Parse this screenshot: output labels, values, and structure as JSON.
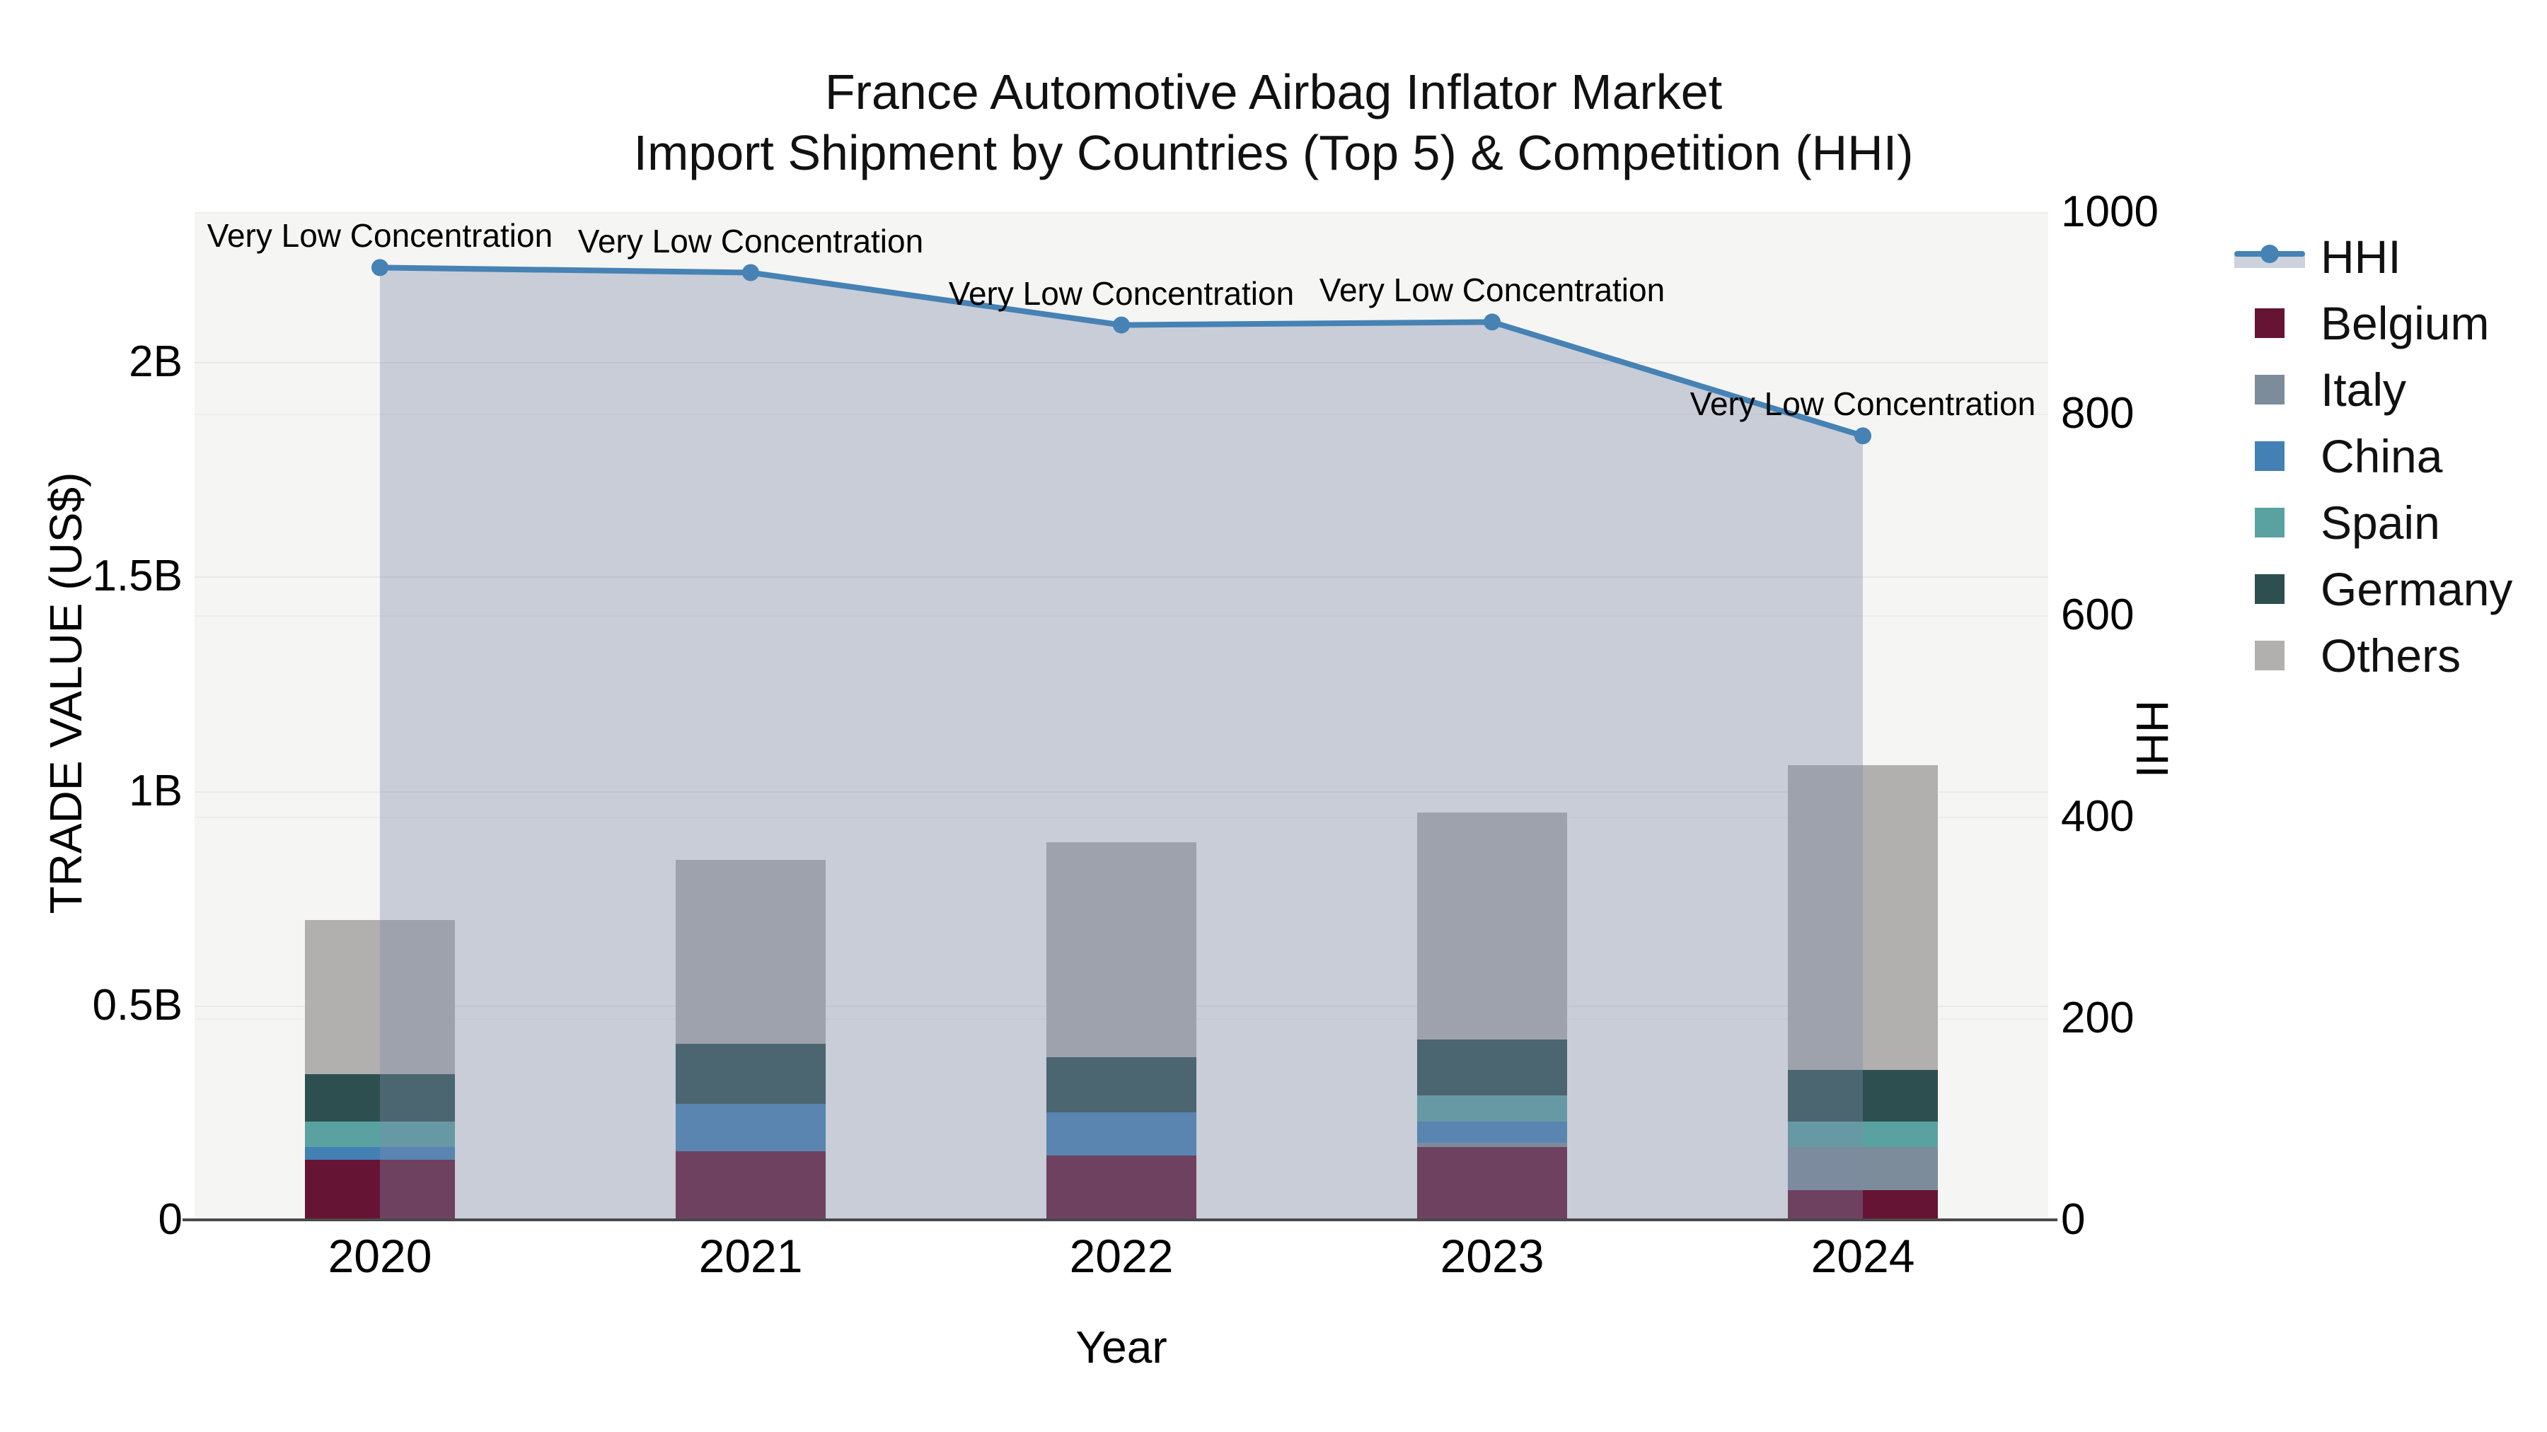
{
  "title": {
    "line1": "France Automotive Airbag Inflator Market",
    "line2": "Import Shipment by Countries (Top 5) & Competition (HHI)"
  },
  "axes": {
    "x_label": "Year",
    "y_left_label": "TRADE VALUE (US$)",
    "y_right_label": "HHI",
    "y_left_ticks": [
      {
        "label": "0",
        "value": 0
      },
      {
        "label": "0.5B",
        "value": 0.5
      },
      {
        "label": "1B",
        "value": 1
      },
      {
        "label": "1.5B",
        "value": 1.5
      },
      {
        "label": "2B",
        "value": 2
      }
    ],
    "y_right_ticks": [
      {
        "label": "0",
        "value": 0
      },
      {
        "label": "200",
        "value": 200
      },
      {
        "label": "400",
        "value": 400
      },
      {
        "label": "600",
        "value": 600
      },
      {
        "label": "800",
        "value": 800
      },
      {
        "label": "1000",
        "value": 1000
      }
    ]
  },
  "legend": [
    {
      "label": "HHI",
      "type": "line",
      "color": "#4682b4"
    },
    {
      "label": "Belgium",
      "type": "swatch",
      "color": "#661434"
    },
    {
      "label": "Italy",
      "type": "swatch",
      "color": "#7c8c9a"
    },
    {
      "label": "China",
      "type": "swatch",
      "color": "#4381b5"
    },
    {
      "label": "Spain",
      "type": "swatch",
      "color": "#5aa2a2"
    },
    {
      "label": "Germany",
      "type": "swatch",
      "color": "#2d4f4f"
    },
    {
      "label": "Others",
      "type": "swatch",
      "color": "#b1b0ae"
    }
  ],
  "chart_data": {
    "type": "bar",
    "subtype": "stacked-bars-with-line",
    "categories": [
      "2020",
      "2021",
      "2022",
      "2023",
      "2024"
    ],
    "value_unit": "billions US$",
    "series": [
      {
        "name": "Belgium",
        "color": "#661434",
        "values": [
          0.14,
          0.16,
          0.15,
          0.17,
          0.07
        ]
      },
      {
        "name": "Italy",
        "color": "#7c8c9a",
        "values": [
          0.11,
          0.14,
          0.14,
          0.18,
          0.17
        ]
      },
      {
        "name": "China",
        "color": "#4381b5",
        "values": [
          0.17,
          0.27,
          0.25,
          0.23,
          0.13
        ]
      },
      {
        "name": "Spain",
        "color": "#5aa2a2",
        "values": [
          0.23,
          0.24,
          0.24,
          0.29,
          0.23
        ]
      },
      {
        "name": "Germany",
        "color": "#2d4f4f",
        "values": [
          0.34,
          0.41,
          0.38,
          0.42,
          0.35
        ]
      },
      {
        "name": "Others",
        "color": "#b1b0ae",
        "values": [
          0.7,
          0.84,
          0.88,
          0.95,
          1.06
        ]
      }
    ],
    "line": {
      "name": "HHI",
      "axis": "right",
      "color": "#4682b4",
      "area_fill": "rgba(127,140,168,0.38)",
      "values": [
        945,
        940,
        888,
        891,
        778
      ]
    },
    "annotations": [
      {
        "category": "2020",
        "text": "Very Low Concentration"
      },
      {
        "category": "2021",
        "text": "Very Low Concentration"
      },
      {
        "category": "2022",
        "text": "Very Low Concentration"
      },
      {
        "category": "2023",
        "text": "Very Low Concentration"
      },
      {
        "category": "2024",
        "text": "Very Low Concentration"
      }
    ],
    "title": "France Automotive Airbag Inflator Market — Import Shipment by Countries (Top 5) & Competition (HHI)",
    "xlabel": "Year",
    "ylabel_left": "TRADE VALUE (US$)",
    "ylabel_right": "HHI",
    "ylim_left": [
      0,
      2.35
    ],
    "ylim_right": [
      0,
      1000
    ],
    "grid": true,
    "legend_position": "right"
  }
}
